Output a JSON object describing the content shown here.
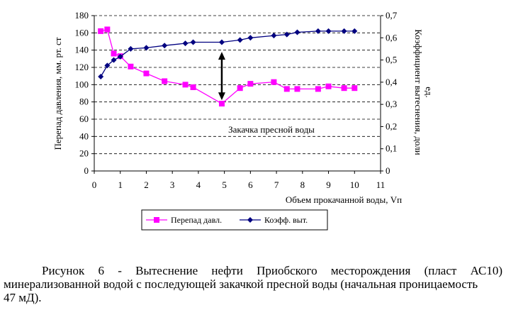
{
  "chart_data": {
    "type": "line",
    "x_axis": {
      "label": "Объем прокачанной воды, Vп",
      "range": [
        0,
        11
      ],
      "ticks": [
        "0",
        "1",
        "2",
        "3",
        "4",
        "5",
        "6",
        "7",
        "8",
        "9",
        "10",
        "11"
      ]
    },
    "y_left": {
      "label": "Перепад давления, мм. рт. ст",
      "range": [
        0,
        180
      ],
      "ticks": [
        "0",
        "20",
        "40",
        "60",
        "80",
        "100",
        "120",
        "140",
        "160",
        "180"
      ]
    },
    "y_right": {
      "label_line1": "Коэффициент вытеснения, доли",
      "label_line2": "ед.",
      "range": [
        0,
        0.7
      ],
      "ticks": [
        "0",
        "0,1",
        "0,2",
        "0,3",
        "0,4",
        "0,5",
        "0,6",
        "0,7"
      ]
    },
    "grid": "horizontal",
    "series": [
      {
        "name": "Перепад давл.",
        "axis": "left",
        "color": "#FF00FF",
        "marker": "square",
        "x": [
          0.25,
          0.5,
          0.75,
          1.0,
          1.4,
          2.0,
          2.7,
          3.5,
          3.8,
          4.9,
          5.6,
          6.0,
          6.9,
          7.4,
          7.8,
          8.6,
          9.0,
          9.6,
          10.0
        ],
        "values": [
          162,
          164,
          136,
          133,
          121,
          113,
          104,
          100,
          97,
          78,
          96,
          101,
          103,
          95,
          95,
          95,
          98,
          96,
          96
        ]
      },
      {
        "name": "Коэфф. выт.",
        "axis": "right",
        "color": "#000080",
        "marker": "diamond",
        "x": [
          0.25,
          0.5,
          0.75,
          1.0,
          1.4,
          2.0,
          2.7,
          3.5,
          3.8,
          4.9,
          5.6,
          6.0,
          6.9,
          7.4,
          7.8,
          8.6,
          9.0,
          9.6,
          10.0
        ],
        "values": [
          0.425,
          0.475,
          0.5,
          0.515,
          0.55,
          0.555,
          0.565,
          0.575,
          0.58,
          0.58,
          0.59,
          0.6,
          0.61,
          0.615,
          0.625,
          0.63,
          0.63,
          0.63,
          0.63
        ]
      }
    ],
    "annotation": {
      "text": "Закачка пресной воды",
      "arrow_x": 4.9,
      "arrow_from_y_left": 138,
      "arrow_to_y_left": 82
    },
    "legend": {
      "placement": "bottom",
      "items": [
        "Перепад давл.",
        "Коэфф. выт."
      ]
    }
  },
  "caption": {
    "line1": "Рисунок 6 - Вытеснение нефти Приобского месторождения (пласт АС10)",
    "line2": "минерализованной водой с последующей закачкой пресной воды (начальная проницаемость",
    "line3": "47 мД)."
  }
}
